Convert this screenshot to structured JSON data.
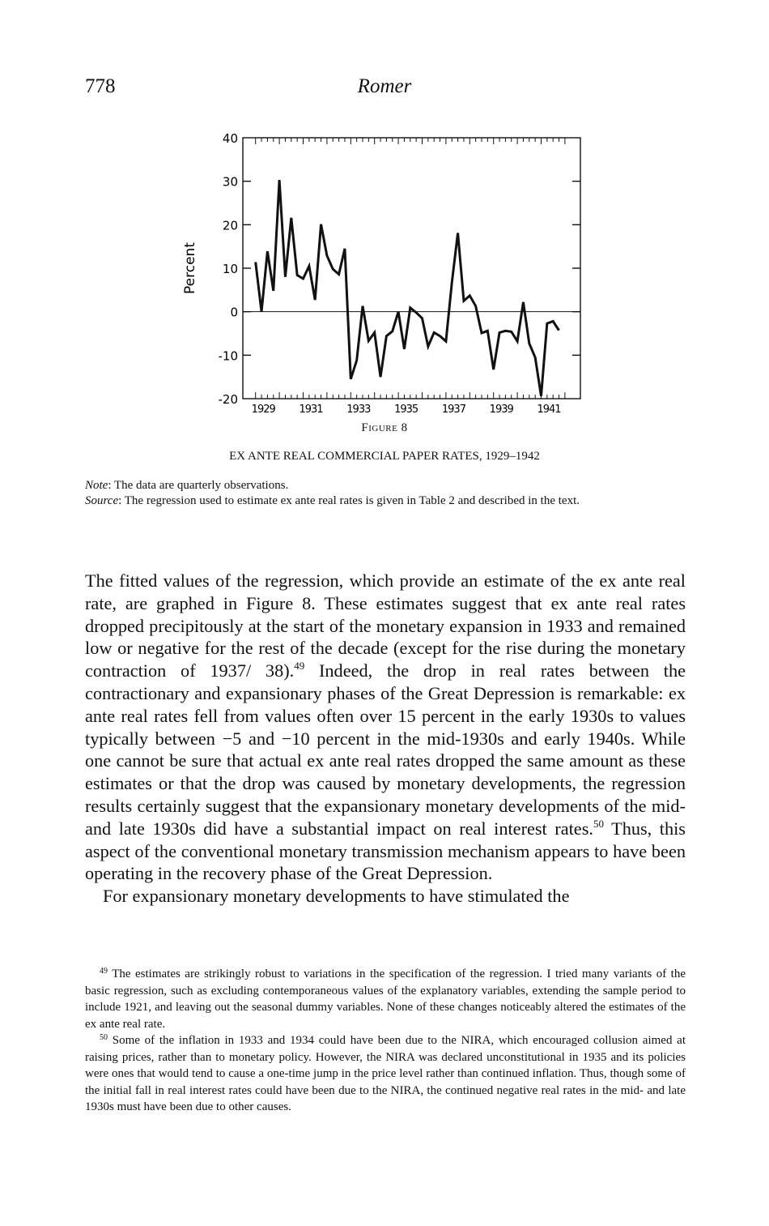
{
  "header": {
    "page_number": "778",
    "running_head": "Romer"
  },
  "figure": {
    "label": "Figure 8",
    "title": "EX ANTE REAL COMMERCIAL PAPER RATES, 1929–1942",
    "note_label": "Note",
    "note_text": ": The data are quarterly observations.",
    "source_label": "Source",
    "source_text": ": The regression used to estimate ex ante real rates is given in Table 2 and described in the text."
  },
  "chart_data": {
    "type": "line",
    "title": "",
    "xlabel": "",
    "ylabel": "Percent",
    "frequency": "quarterly",
    "x_start": "1929Q1",
    "xlim": [
      1929,
      1942
    ],
    "ylim": [
      -20,
      40
    ],
    "yticks": [
      -20,
      -10,
      0,
      10,
      20,
      30,
      40
    ],
    "ytick_labels": [
      "-20",
      "-10",
      "0",
      "10",
      "20",
      "30",
      "40"
    ],
    "xtick_labels": [
      "1929",
      "1931",
      "1933",
      "1935",
      "1937",
      "1939",
      "1941"
    ],
    "xtick_years": [
      1929,
      1931,
      1933,
      1935,
      1937,
      1939,
      1941
    ],
    "zero_line": true,
    "grid": false,
    "values": [
      11.4,
      0.0,
      13.9,
      4.8,
      30.3,
      8.0,
      21.6,
      8.4,
      7.6,
      10.5,
      2.7,
      20.1,
      12.9,
      9.8,
      8.6,
      14.5,
      -15.5,
      -11.2,
      1.3,
      -6.7,
      -4.8,
      -15.0,
      -5.6,
      -4.5,
      0.0,
      -8.6,
      0.9,
      -0.2,
      -1.5,
      -8.0,
      -4.8,
      -5.6,
      -6.8,
      6.7,
      18.1,
      2.5,
      3.7,
      1.3,
      -4.9,
      -4.4,
      -13.3,
      -4.8,
      -4.4,
      -4.6,
      -6.8,
      2.2,
      -7.3,
      -10.5,
      -19.4,
      -2.7,
      -2.2,
      -4.3
    ]
  },
  "body": {
    "p1_a": "The fitted values of the regression, which provide an estimate of the ex ante real rate, are graphed in Figure 8. These estimates suggest that ex ante real rates dropped precipitously at the start of the monetary expansion in 1933 and remained low or negative for the rest of the decade (except for the rise during the monetary contraction of 1937/ 38).",
    "fn49_ref": "49",
    "p1_b": " Indeed, the drop in real rates between the contractionary and expansionary phases of the Great Depression is remarkable: ex ante real rates fell from values often over 15 percent in the early 1930s to values typically between −5 and −10 percent in the mid-1930s and early 1940s. While one cannot be sure that actual ex ante real rates dropped the same amount as these estimates or that the drop was caused by monetary developments, the regression results certainly suggest that the expansionary monetary developments of the mid- and late 1930s did have a substantial impact on real interest rates.",
    "fn50_ref": "50",
    "p1_c": " Thus, this aspect of the conventional monetary transmission mechanism appears to have been operating in the recovery phase of the Great Depression.",
    "p2": "For expansionary monetary developments to have stimulated the"
  },
  "footnotes": [
    {
      "num": "49",
      "text": " The estimates are strikingly robust to variations in the specification of the regression. I tried many variants of the basic regression, such as excluding contemporaneous values of the explanatory variables, extending the sample period to include 1921, and leaving out the seasonal dummy variables. None of these changes noticeably altered the estimates of the ex ante real rate."
    },
    {
      "num": "50",
      "text": " Some of the inflation in 1933 and 1934 could have been due to the NIRA, which encouraged collusion aimed at raising prices, rather than to monetary policy. However, the NIRA was declared unconstitutional in 1935 and its policies were ones that would tend to cause a one-time jump in the price level rather than continued inflation. Thus, though some of the initial fall in real interest rates could have been due to the NIRA, the continued negative real rates in the mid- and late 1930s must have been due to other causes."
    }
  ]
}
